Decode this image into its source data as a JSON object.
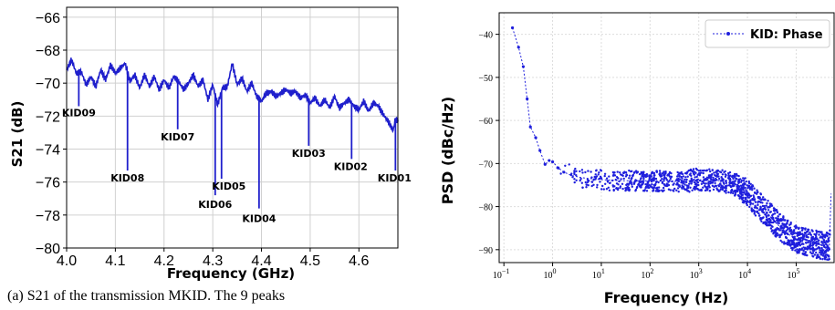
{
  "caption": "(a) S21 of the transmission MKID. The 9 peaks",
  "chart_data": [
    {
      "type": "line",
      "xlabel": "Frequency (GHz)",
      "ylabel": "S21 (dB)",
      "xlim": [
        4.0,
        4.68
      ],
      "ylim": [
        -80,
        -65.4
      ],
      "xticks": [
        4.0,
        4.1,
        4.2,
        4.3,
        4.4,
        4.5,
        4.6
      ],
      "xtick_labels": [
        "4.0",
        "4.1",
        "4.2",
        "4.3",
        "4.4",
        "4.5",
        "4.6"
      ],
      "yticks": [
        -80,
        -78,
        -76,
        -74,
        -72,
        -70,
        -68,
        -66
      ],
      "ytick_labels": [
        "−80",
        "−78",
        "−76",
        "−74",
        "−72",
        "−70",
        "−68",
        "−66"
      ],
      "grid": true,
      "color": "#1f1fcc",
      "baseline": [
        [
          4.0,
          -69.2
        ],
        [
          4.01,
          -68.6
        ],
        [
          4.02,
          -69.4
        ],
        [
          4.03,
          -69.3
        ],
        [
          4.04,
          -70.1
        ],
        [
          4.05,
          -69.6
        ],
        [
          4.06,
          -70.2
        ],
        [
          4.07,
          -69.2
        ],
        [
          4.08,
          -69.8
        ],
        [
          4.09,
          -68.9
        ],
        [
          4.1,
          -69.4
        ],
        [
          4.11,
          -69.1
        ],
        [
          4.12,
          -68.8
        ],
        [
          4.13,
          -69.9
        ],
        [
          4.14,
          -69.5
        ],
        [
          4.15,
          -70.3
        ],
        [
          4.16,
          -69.5
        ],
        [
          4.17,
          -70.2
        ],
        [
          4.18,
          -69.6
        ],
        [
          4.19,
          -70.4
        ],
        [
          4.2,
          -69.8
        ],
        [
          4.21,
          -70.3
        ],
        [
          4.22,
          -69.6
        ],
        [
          4.23,
          -69.9
        ],
        [
          4.24,
          -70.4
        ],
        [
          4.25,
          -70.0
        ],
        [
          4.26,
          -69.5
        ],
        [
          4.27,
          -70.2
        ],
        [
          4.28,
          -69.8
        ],
        [
          4.29,
          -71.0
        ],
        [
          4.3,
          -70.1
        ],
        [
          4.31,
          -71.3
        ],
        [
          4.32,
          -70.3
        ],
        [
          4.33,
          -70.2
        ],
        [
          4.34,
          -68.8
        ],
        [
          4.35,
          -70.1
        ],
        [
          4.36,
          -69.7
        ],
        [
          4.37,
          -70.5
        ],
        [
          4.38,
          -70.0
        ],
        [
          4.39,
          -70.8
        ],
        [
          4.4,
          -71.1
        ],
        [
          4.41,
          -70.6
        ],
        [
          4.42,
          -70.5
        ],
        [
          4.43,
          -70.8
        ],
        [
          4.44,
          -70.6
        ],
        [
          4.45,
          -70.4
        ],
        [
          4.46,
          -70.6
        ],
        [
          4.47,
          -70.5
        ],
        [
          4.48,
          -70.9
        ],
        [
          4.49,
          -70.7
        ],
        [
          4.5,
          -71.2
        ],
        [
          4.51,
          -70.9
        ],
        [
          4.52,
          -71.4
        ],
        [
          4.53,
          -71.0
        ],
        [
          4.54,
          -71.5
        ],
        [
          4.55,
          -70.8
        ],
        [
          4.56,
          -71.5
        ],
        [
          4.57,
          -71.2
        ],
        [
          4.58,
          -71.0
        ],
        [
          4.59,
          -71.4
        ],
        [
          4.6,
          -71.6
        ],
        [
          4.61,
          -71.1
        ],
        [
          4.62,
          -71.7
        ],
        [
          4.63,
          -71.2
        ],
        [
          4.64,
          -71.4
        ],
        [
          4.65,
          -71.9
        ],
        [
          4.66,
          -72.3
        ],
        [
          4.67,
          -72.9
        ],
        [
          4.675,
          -72.2
        ],
        [
          4.68,
          -72.3
        ]
      ],
      "resonances": [
        {
          "label": "KID09",
          "freq": 4.025,
          "dip": -71.4
        },
        {
          "label": "KID08",
          "freq": 4.125,
          "dip": -75.3
        },
        {
          "label": "KID07",
          "freq": 4.228,
          "dip": -72.8
        },
        {
          "label": "KID06",
          "freq": 4.305,
          "dip": -76.8
        },
        {
          "label": "KID05",
          "freq": 4.318,
          "dip": -75.8
        },
        {
          "label": "KID04",
          "freq": 4.395,
          "dip": -77.6
        },
        {
          "label": "KID03",
          "freq": 4.497,
          "dip": -73.8
        },
        {
          "label": "KID02",
          "freq": 4.585,
          "dip": -74.6
        },
        {
          "label": "KID01",
          "freq": 4.675,
          "dip": -75.3
        }
      ]
    },
    {
      "type": "scatter",
      "xlabel": "Frequency (Hz)",
      "ylabel": "PSD (dBc/Hz)",
      "xscale": "log",
      "xlim": [
        0.08,
        600000
      ],
      "ylim": [
        -93,
        -35
      ],
      "xticks": [
        0.1,
        1,
        10,
        100,
        1000,
        10000,
        100000
      ],
      "xtick_base": "10",
      "xtick_exps": [
        "−1",
        "0",
        "1",
        "2",
        "3",
        "4",
        "5"
      ],
      "yticks": [
        -90,
        -80,
        -70,
        -60,
        -50,
        -40
      ],
      "ytick_labels": [
        "−90",
        "−80",
        "−70",
        "−60",
        "−50",
        "−40"
      ],
      "grid": true,
      "legend": {
        "position": "top-right",
        "entries": [
          "KID: Phase"
        ]
      },
      "color": "#1f1fdd",
      "series": [
        {
          "name": "KID: Phase",
          "points": [
            [
              0.15,
              -38.5
            ],
            [
              0.2,
              -43
            ],
            [
              0.25,
              -47.5
            ],
            [
              0.3,
              -55
            ],
            [
              0.35,
              -61.5
            ],
            [
              0.45,
              -64
            ],
            [
              0.55,
              -67
            ],
            [
              0.7,
              -70.2
            ],
            [
              0.85,
              -69.3
            ],
            [
              1.0,
              -69.6
            ],
            [
              1.3,
              -71.0
            ],
            [
              1.7,
              -72.0
            ],
            [
              2.5,
              -72.8
            ],
            [
              4,
              -73.3
            ],
            [
              7,
              -73.6
            ],
            [
              12,
              -73.8
            ],
            [
              25,
              -74.0
            ],
            [
              50,
              -74.0
            ],
            [
              100,
              -74.0
            ],
            [
              200,
              -74.1
            ],
            [
              500,
              -74.2
            ],
            [
              800,
              -73.8
            ],
            [
              1500,
              -73.8
            ],
            [
              3000,
              -74.0
            ],
            [
              6000,
              -75.0
            ],
            [
              10000,
              -77.0
            ],
            [
              15000,
              -79.0
            ],
            [
              25000,
              -81.5
            ],
            [
              40000,
              -84.0
            ],
            [
              70000,
              -86.5
            ],
            [
              120000,
              -88.0
            ],
            [
              200000,
              -88.5
            ],
            [
              350000,
              -89.0
            ],
            [
              480000,
              -89.2
            ],
            [
              520000,
              -77.0
            ]
          ]
        }
      ]
    }
  ]
}
